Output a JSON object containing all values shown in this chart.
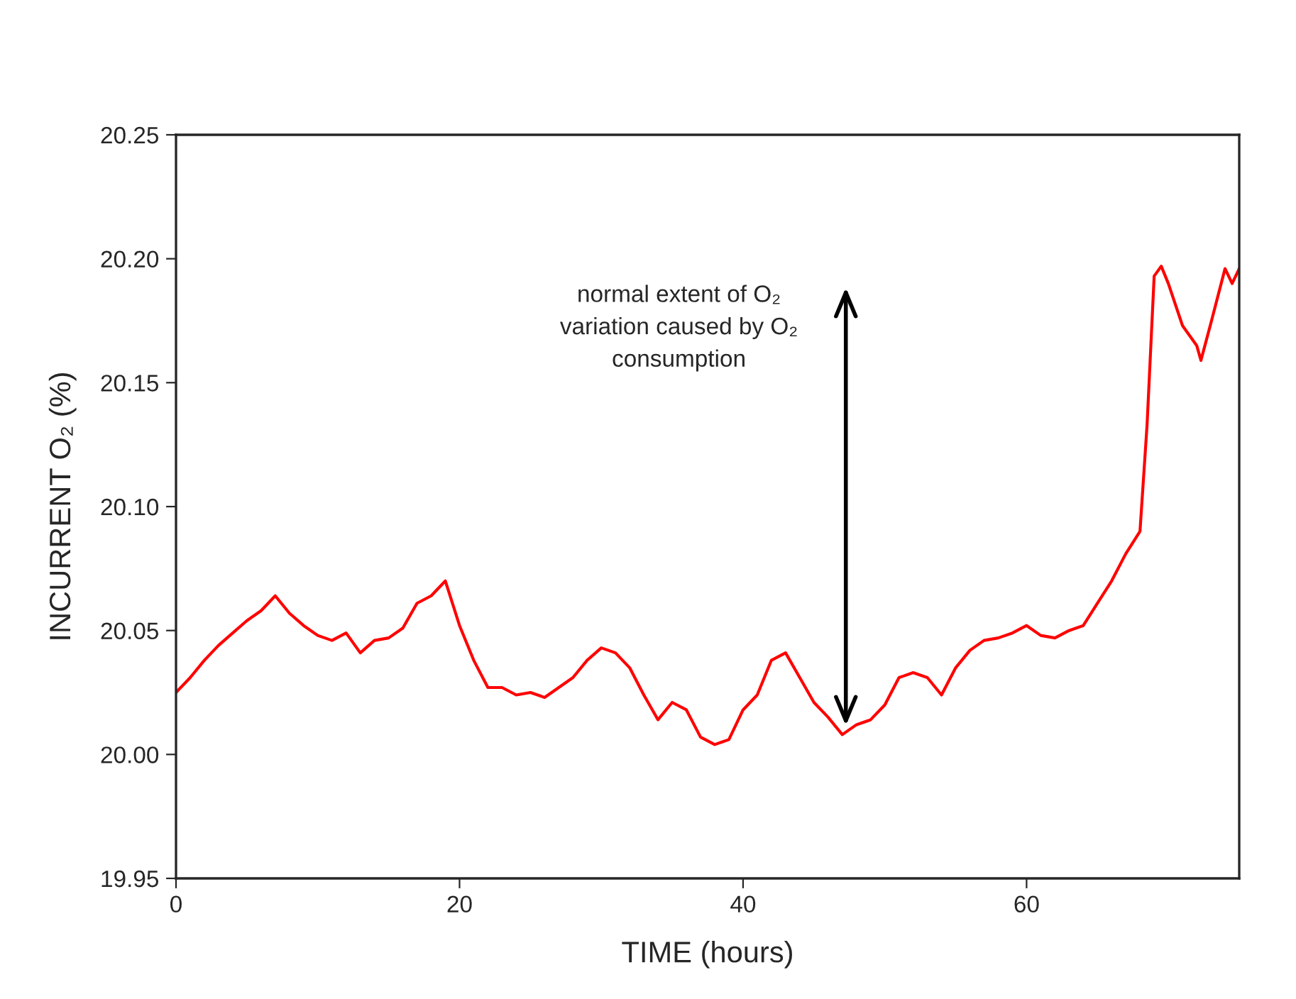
{
  "chart_data": {
    "type": "line",
    "xlabel": "TIME (hours)",
    "ylabel": "INCURRENT O₂ (%)",
    "x": [
      0,
      1,
      2,
      3,
      4,
      5,
      6,
      7,
      8,
      9,
      10,
      11,
      12,
      13,
      14,
      15,
      16,
      17,
      18,
      19,
      20,
      21,
      22,
      23,
      24,
      25,
      26,
      27,
      28,
      29,
      30,
      31,
      32,
      33,
      34,
      35,
      36,
      37,
      38,
      39,
      40,
      41,
      42,
      43,
      44,
      45,
      46,
      47,
      48,
      49,
      50,
      51,
      52,
      53,
      54,
      55,
      56,
      57,
      58,
      59,
      60,
      61,
      62,
      63,
      64,
      65,
      66,
      67,
      68,
      68.5,
      69,
      69.5,
      70,
      71,
      72,
      72.3,
      73,
      74,
      74.5,
      75
    ],
    "series": [
      {
        "color": "#ff0000",
        "values": [
          20.025,
          20.031,
          20.038,
          20.044,
          20.049,
          20.054,
          20.058,
          20.064,
          20.057,
          20.052,
          20.048,
          20.046,
          20.049,
          20.041,
          20.046,
          20.047,
          20.051,
          20.061,
          20.064,
          20.07,
          20.052,
          20.038,
          20.027,
          20.027,
          20.024,
          20.025,
          20.023,
          20.027,
          20.031,
          20.038,
          20.043,
          20.041,
          20.035,
          20.024,
          20.014,
          20.021,
          20.018,
          20.007,
          20.004,
          20.006,
          20.018,
          20.024,
          20.038,
          20.041,
          20.031,
          20.021,
          20.015,
          20.008,
          20.012,
          20.014,
          20.02,
          20.031,
          20.033,
          20.031,
          20.024,
          20.035,
          20.042,
          20.046,
          20.047,
          20.049,
          20.052,
          20.048,
          20.047,
          20.05,
          20.052,
          20.061,
          20.07,
          20.081,
          20.09,
          20.133,
          20.193,
          20.197,
          20.19,
          20.173,
          20.165,
          20.159,
          20.174,
          20.196,
          20.19,
          20.196
        ]
      }
    ],
    "xlim": [
      0,
      75
    ],
    "xticks": [
      0,
      20,
      40,
      60
    ],
    "ylim": [
      19.95,
      20.25
    ],
    "yticks": [
      {
        "value": 19.95,
        "label": "19.95"
      },
      {
        "value": 20.0,
        "label": "20.00"
      },
      {
        "value": 20.05,
        "label": "20.05"
      },
      {
        "value": 20.1,
        "label": "20.10"
      },
      {
        "value": 20.15,
        "label": "20.15"
      },
      {
        "value": 20.2,
        "label": "20.20"
      },
      {
        "value": 20.25,
        "label": "20.25"
      }
    ],
    "annotations": [
      "normal extent of O₂\nvariation caused by O₂\nconsumption"
    ],
    "grid": false,
    "legend": false,
    "marker": "none",
    "line_style": "solid"
  }
}
